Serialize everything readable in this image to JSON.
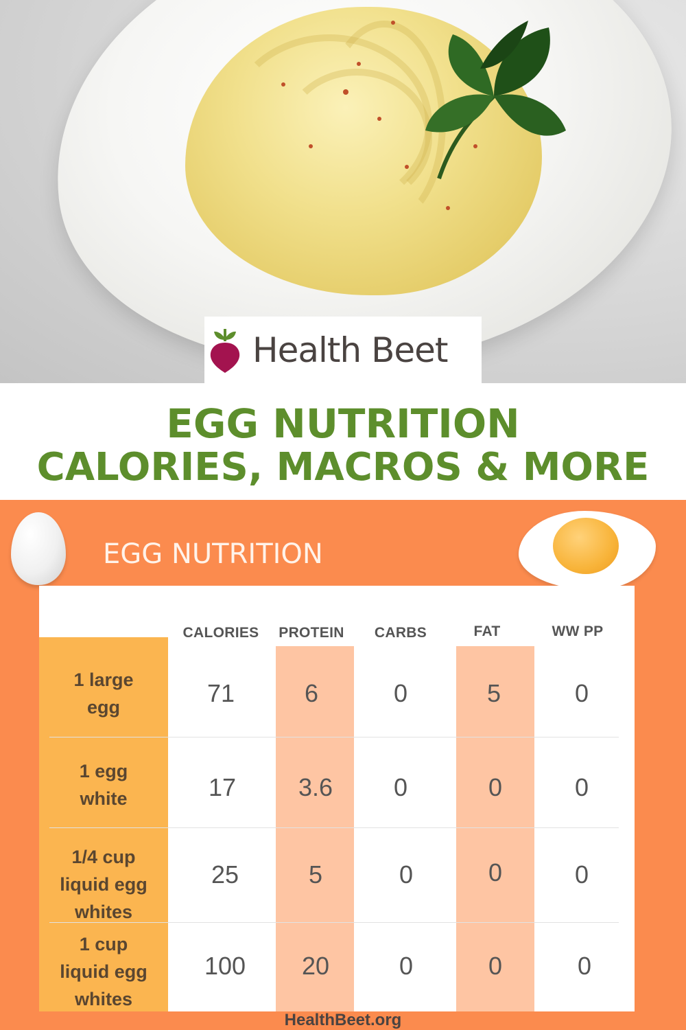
{
  "brand": {
    "name": "Health Beet",
    "colors": {
      "beet": "#a3134f",
      "leaf": "#5d8e2c"
    }
  },
  "headline": {
    "line1": "EGG NUTRITION",
    "line2": "CALORIES, MACROS & MORE"
  },
  "infographic": {
    "title": "EGG NUTRITION",
    "columns": [
      "CALORIES",
      "PROTEIN",
      "CARBS",
      "FAT",
      "WW PP"
    ],
    "rows": [
      {
        "label": [
          "1 large",
          "egg"
        ],
        "values": [
          "71",
          "6",
          "0",
          "5",
          "0"
        ]
      },
      {
        "label": [
          "1 egg",
          "white"
        ],
        "values": [
          "17",
          "3.6",
          "0",
          "0",
          "0"
        ]
      },
      {
        "label": [
          "1/4 cup",
          "liquid egg",
          "whites"
        ],
        "values": [
          "25",
          "5",
          "0",
          "0",
          "0"
        ]
      },
      {
        "label": [
          "1 cup",
          "liquid egg",
          "whites"
        ],
        "values": [
          "100",
          "20",
          "0",
          "0",
          "0"
        ]
      }
    ],
    "footer": "HealthBeet.org",
    "colors": {
      "background": "#fb8b4e",
      "label_column": "#fbb550",
      "highlight": "#fec5a3"
    }
  },
  "icons": [
    "beet-icon",
    "egg-icon",
    "fried-egg-icon"
  ]
}
